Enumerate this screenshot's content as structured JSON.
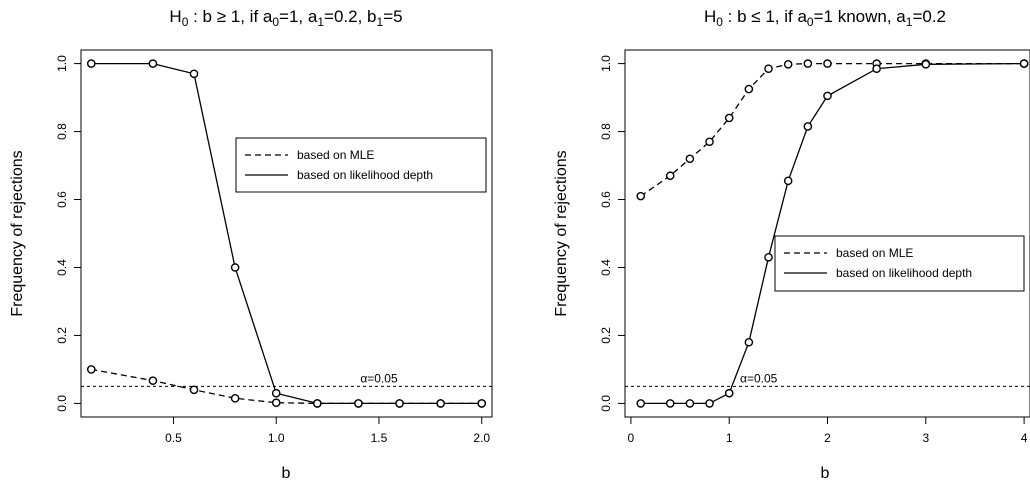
{
  "chart_data": [
    {
      "type": "line",
      "title_parts": [
        "H",
        "0",
        " : b ≥ 1, if a",
        "0",
        "=1, a",
        "1",
        "=0.2, b",
        "1",
        "=5"
      ],
      "xlabel": "b",
      "ylabel": "Frequency of rejections",
      "xlim": [
        0.05,
        2.05
      ],
      "ylim": [
        -0.04,
        1.04
      ],
      "xticks": [
        0.5,
        1.0,
        1.5,
        2.0
      ],
      "xtick_labels": [
        "0.5",
        "1.0",
        "1.5",
        "2.0"
      ],
      "yticks": [
        0.0,
        0.2,
        0.4,
        0.6,
        0.8,
        1.0
      ],
      "ytick_labels": [
        "0.0",
        "0.2",
        "0.4",
        "0.6",
        "0.8",
        "1.0"
      ],
      "grid": false,
      "legend_position": "upper-right",
      "alpha_line": {
        "value": 0.05,
        "label": "α=0.05",
        "label_x": 1.5
      },
      "series": [
        {
          "name": "based on MLE",
          "style": "dashed",
          "x": [
            0.1,
            0.4,
            0.6,
            0.8,
            1.0,
            1.2,
            1.4,
            1.6,
            1.8,
            2.0
          ],
          "y": [
            0.1,
            0.067,
            0.04,
            0.015,
            0.002,
            0.0,
            0.0,
            0.0,
            0.0,
            0.0
          ]
        },
        {
          "name": "based on likelihood depth",
          "style": "solid",
          "x": [
            0.1,
            0.4,
            0.6,
            0.8,
            1.0,
            1.2,
            1.4,
            1.6,
            1.8,
            2.0
          ],
          "y": [
            1.0,
            1.0,
            0.97,
            0.4,
            0.03,
            0.0,
            0.0,
            0.0,
            0.0,
            0.0
          ]
        }
      ]
    },
    {
      "type": "line",
      "title_parts": [
        "H",
        "0",
        " : b ≤ 1, if a",
        "0",
        "=1 known, a",
        "1",
        "=0.2"
      ],
      "xlabel": "b",
      "ylabel": "Frequency of rejections",
      "xlim": [
        -0.06,
        4.06
      ],
      "ylim": [
        -0.04,
        1.04
      ],
      "xticks": [
        0,
        1,
        2,
        3,
        4
      ],
      "xtick_labels": [
        "0",
        "1",
        "2",
        "3",
        "4"
      ],
      "yticks": [
        0.0,
        0.2,
        0.4,
        0.6,
        0.8,
        1.0
      ],
      "ytick_labels": [
        "0.0",
        "0.2",
        "0.4",
        "0.6",
        "0.8",
        "1.0"
      ],
      "grid": false,
      "legend_position": "center-right",
      "alpha_line": {
        "value": 0.05,
        "label": "α=0.05",
        "label_x": 1.3
      },
      "series": [
        {
          "name": "based on MLE",
          "style": "dashed",
          "x": [
            0.1,
            0.4,
            0.6,
            0.8,
            1.0,
            1.2,
            1.4,
            1.6,
            1.8,
            2.0,
            2.5,
            3.0,
            4.0
          ],
          "y": [
            0.61,
            0.67,
            0.72,
            0.77,
            0.84,
            0.925,
            0.985,
            0.998,
            1.0,
            1.0,
            1.0,
            1.0,
            1.0
          ]
        },
        {
          "name": "based on likelihood depth",
          "style": "solid",
          "x": [
            0.1,
            0.4,
            0.6,
            0.8,
            1.0,
            1.2,
            1.4,
            1.6,
            1.8,
            2.0,
            2.5,
            3.0,
            4.0
          ],
          "y": [
            0.0,
            0.0,
            0.0,
            0.0,
            0.03,
            0.18,
            0.43,
            0.655,
            0.815,
            0.905,
            0.985,
            0.998,
            1.0
          ]
        }
      ]
    }
  ]
}
